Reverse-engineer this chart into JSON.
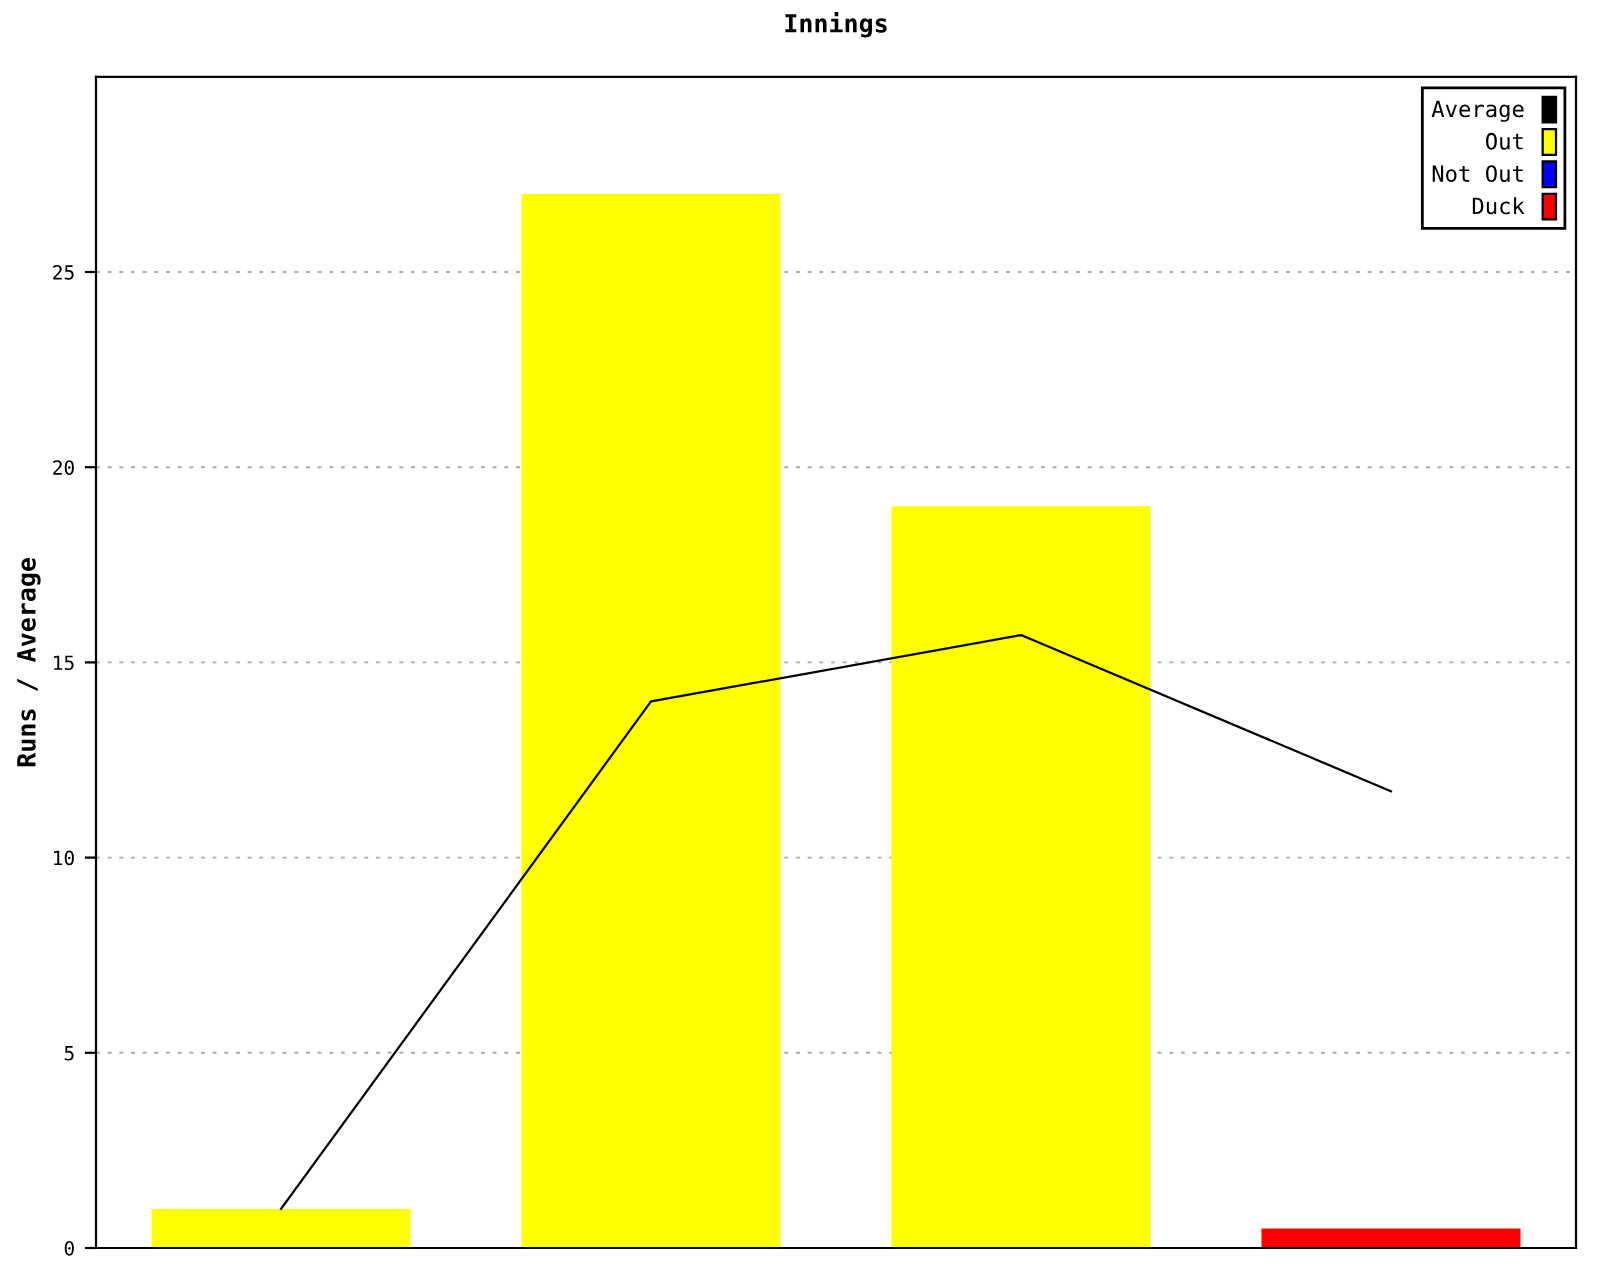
{
  "chart_data": {
    "type": "bar",
    "title": "Innings",
    "ylabel": "Runs / Average",
    "categories": [
      null,
      null,
      null,
      null
    ],
    "series": [
      {
        "name": "Average",
        "type": "line",
        "color": "#000000",
        "values": [
          1,
          14,
          15.7,
          11.7
        ]
      },
      {
        "name": "Out",
        "color": "#ffff00",
        "values": [
          1,
          27,
          19,
          null
        ]
      },
      {
        "name": "Not Out",
        "color": "#0000ff",
        "values": [
          null,
          null,
          null,
          null
        ]
      },
      {
        "name": "Duck",
        "color": "#ff0000",
        "values": [
          null,
          null,
          null,
          0.5
        ]
      }
    ],
    "ylim": [
      0,
      30
    ],
    "yticks": [
      0,
      5,
      10,
      15,
      20,
      25
    ],
    "grid": "y",
    "legend": "top right",
    "marker": "none",
    "line_style": "solid"
  }
}
